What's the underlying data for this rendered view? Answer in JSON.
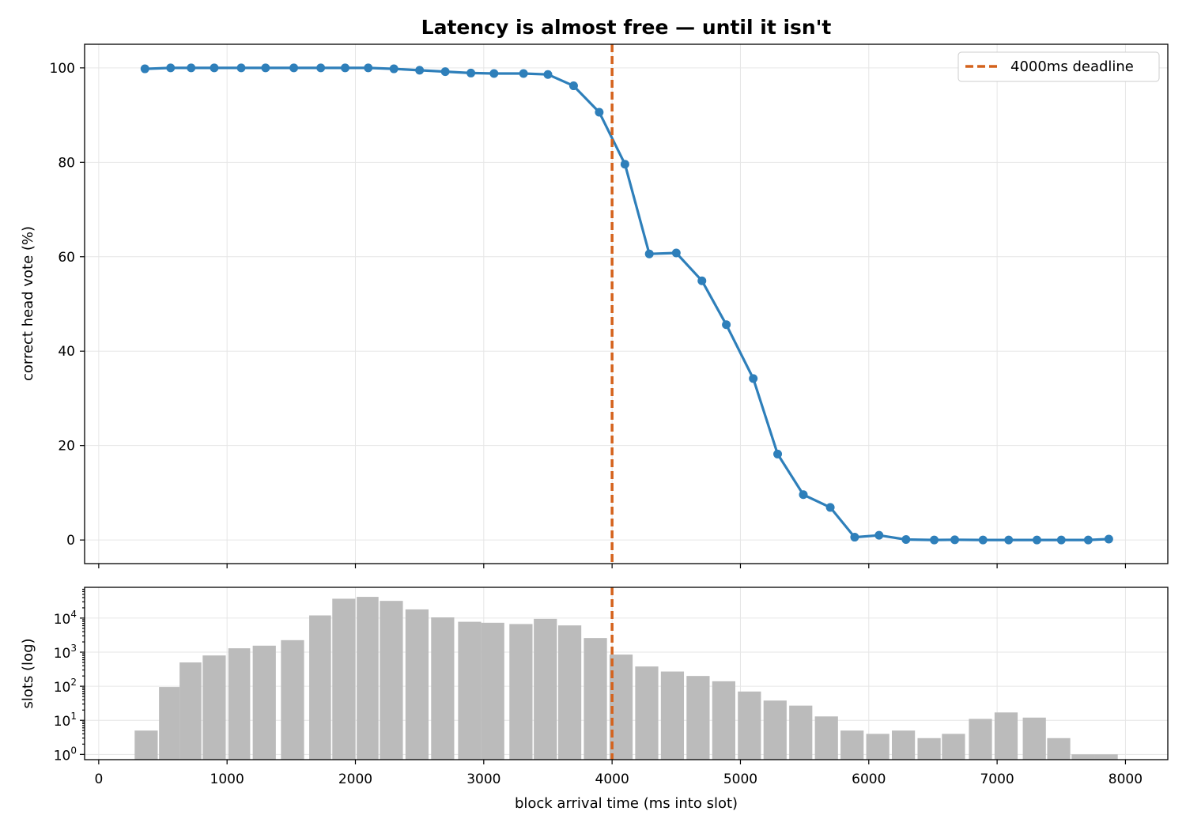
{
  "chart_data": [
    {
      "type": "line",
      "title": "Latency is almost free — until it isn't",
      "xlabel": "",
      "ylabel": "correct head vote (%)",
      "xlim": [
        -110,
        8330
      ],
      "ylim": [
        -5,
        105
      ],
      "x_ticks": [
        0,
        1000,
        2000,
        3000,
        4000,
        5000,
        6000,
        7000,
        8000
      ],
      "y_ticks": [
        0,
        20,
        40,
        60,
        80,
        100
      ],
      "grid": true,
      "legend": {
        "position": "top-right",
        "entries": [
          "4000ms deadline"
        ]
      },
      "series": [
        {
          "name": "",
          "color": "#2e7fba",
          "x": [
            360,
            560,
            720,
            900,
            1110,
            1300,
            1520,
            1730,
            1920,
            2100,
            2300,
            2500,
            2700,
            2900,
            3080,
            3310,
            3500,
            3700,
            3900,
            4100,
            4290,
            4500,
            4700,
            4890,
            5100,
            5290,
            5490,
            5700,
            5890,
            6080,
            6290,
            6510,
            6670,
            6890,
            7090,
            7310,
            7500,
            7710,
            7870
          ],
          "y": [
            99.8,
            100,
            100,
            100,
            100,
            100,
            100,
            100,
            100,
            100,
            99.8,
            99.5,
            99.2,
            98.9,
            98.8,
            98.8,
            98.6,
            96.2,
            90.6,
            79.6,
            60.6,
            60.8,
            54.9,
            45.6,
            34.2,
            18.2,
            9.6,
            6.9,
            0.6,
            1.0,
            0.1,
            0.0,
            0.05,
            0.0,
            0.0,
            0.0,
            0.0,
            0.0,
            0.2
          ]
        }
      ],
      "annotations": [
        {
          "type": "vline",
          "x": 4000,
          "label": "4000ms deadline",
          "color": "#d4621c",
          "style": "dashed"
        }
      ]
    },
    {
      "type": "bar",
      "title": "",
      "xlabel": "block arrival time (ms into slot)",
      "ylabel": "slots (log)",
      "xlim": [
        -110,
        8330
      ],
      "ylim": [
        0.7,
        80000
      ],
      "y_scale": "log",
      "x_ticks": [
        0,
        1000,
        2000,
        3000,
        4000,
        5000,
        6000,
        7000,
        8000
      ],
      "y_ticks": [
        {
          "value": 1,
          "base": "10",
          "exp": "0"
        },
        {
          "value": 10,
          "base": "10",
          "exp": "1"
        },
        {
          "value": 100,
          "base": "10",
          "exp": "2"
        },
        {
          "value": 1000,
          "base": "10",
          "exp": "3"
        },
        {
          "value": 10000,
          "base": "10",
          "exp": "4"
        }
      ],
      "grid": true,
      "color": "#bbbbbb",
      "bins": [
        {
          "x0": 280,
          "x1": 460,
          "count": 5
        },
        {
          "x0": 470,
          "x1": 630,
          "count": 95
        },
        {
          "x0": 630,
          "x1": 800,
          "count": 500
        },
        {
          "x0": 810,
          "x1": 990,
          "count": 800
        },
        {
          "x0": 1010,
          "x1": 1180,
          "count": 1300
        },
        {
          "x0": 1200,
          "x1": 1380,
          "count": 1550
        },
        {
          "x0": 1420,
          "x1": 1600,
          "count": 2250
        },
        {
          "x0": 1640,
          "x1": 1810,
          "count": 12000
        },
        {
          "x0": 1820,
          "x1": 2000,
          "count": 37000
        },
        {
          "x0": 2010,
          "x1": 2180,
          "count": 42000
        },
        {
          "x0": 2190,
          "x1": 2370,
          "count": 32000
        },
        {
          "x0": 2390,
          "x1": 2570,
          "count": 18000
        },
        {
          "x0": 2590,
          "x1": 2770,
          "count": 10500
        },
        {
          "x0": 2800,
          "x1": 2980,
          "count": 7800
        },
        {
          "x0": 2980,
          "x1": 3160,
          "count": 7300
        },
        {
          "x0": 3200,
          "x1": 3380,
          "count": 6700
        },
        {
          "x0": 3390,
          "x1": 3570,
          "count": 9500
        },
        {
          "x0": 3580,
          "x1": 3760,
          "count": 6100
        },
        {
          "x0": 3780,
          "x1": 3960,
          "count": 2600
        },
        {
          "x0": 3980,
          "x1": 4160,
          "count": 850
        },
        {
          "x0": 4180,
          "x1": 4360,
          "count": 380
        },
        {
          "x0": 4380,
          "x1": 4560,
          "count": 270
        },
        {
          "x0": 4580,
          "x1": 4760,
          "count": 200
        },
        {
          "x0": 4780,
          "x1": 4960,
          "count": 140
        },
        {
          "x0": 4980,
          "x1": 5160,
          "count": 70
        },
        {
          "x0": 5180,
          "x1": 5360,
          "count": 38
        },
        {
          "x0": 5380,
          "x1": 5560,
          "count": 27
        },
        {
          "x0": 5580,
          "x1": 5760,
          "count": 13
        },
        {
          "x0": 5780,
          "x1": 5960,
          "count": 5
        },
        {
          "x0": 5980,
          "x1": 6160,
          "count": 4
        },
        {
          "x0": 6180,
          "x1": 6360,
          "count": 5
        },
        {
          "x0": 6380,
          "x1": 6560,
          "count": 3
        },
        {
          "x0": 6570,
          "x1": 6750,
          "count": 4
        },
        {
          "x0": 6780,
          "x1": 6960,
          "count": 11
        },
        {
          "x0": 6980,
          "x1": 7160,
          "count": 17
        },
        {
          "x0": 7200,
          "x1": 7380,
          "count": 12
        },
        {
          "x0": 7390,
          "x1": 7570,
          "count": 3
        },
        {
          "x0": 7580,
          "x1": 7760,
          "count": 1
        },
        {
          "x0": 7760,
          "x1": 7940,
          "count": 1
        }
      ],
      "annotations": [
        {
          "type": "vline",
          "x": 4000,
          "color": "#d4621c",
          "style": "dashed"
        }
      ]
    }
  ]
}
